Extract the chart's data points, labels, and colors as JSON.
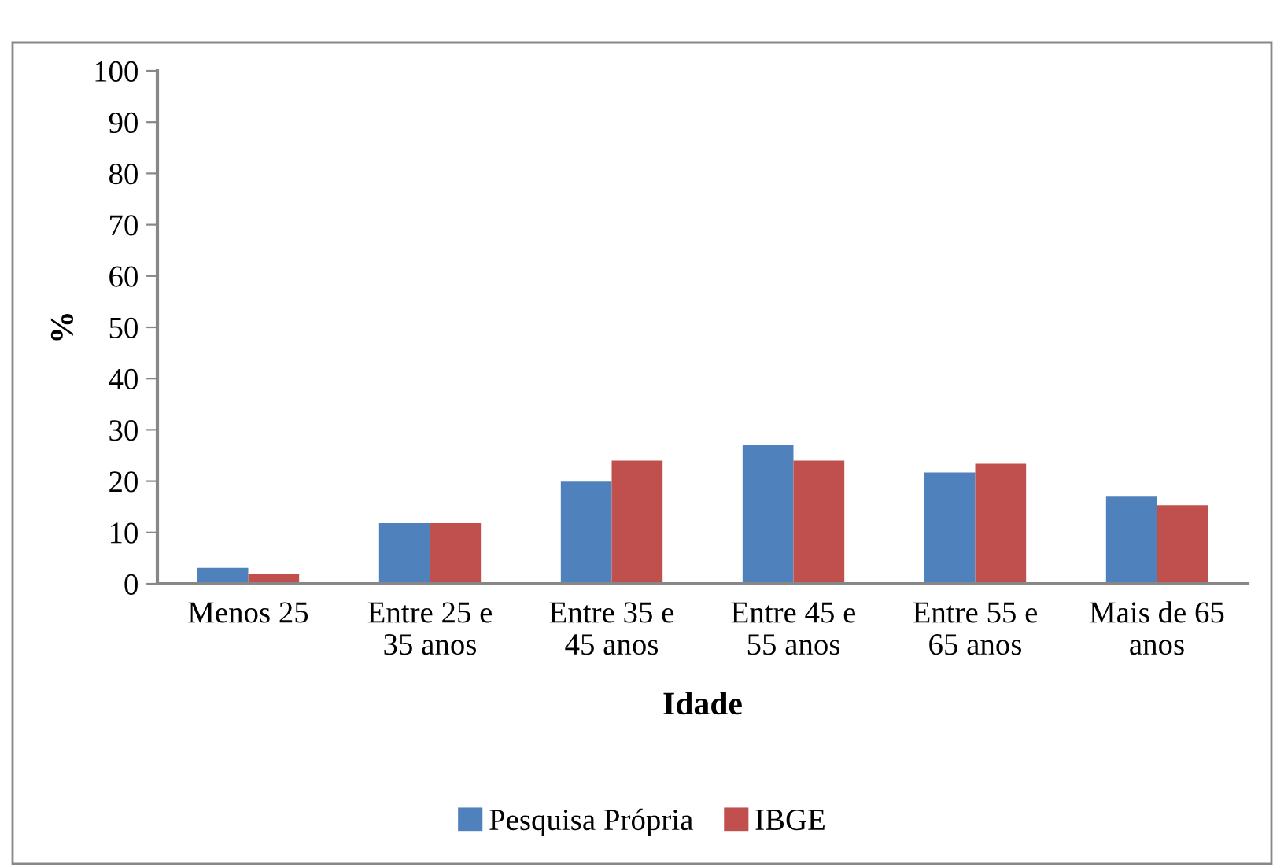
{
  "chart_data": {
    "type": "bar",
    "xlabel": "Idade",
    "ylabel": "%",
    "categories": [
      "Menos 25",
      "Entre 25 e\n35 anos",
      "Entre 35 e\n45 anos",
      "Entre 45 e\n55 anos",
      "Entre 55 e\n65 anos",
      "Mais de 65\nanos"
    ],
    "series": [
      {
        "name": "Pesquisa Própria",
        "color": "#4f81bd",
        "values": [
          3.1,
          11.8,
          19.9,
          27.0,
          21.7,
          17.0
        ]
      },
      {
        "name": "IBGE",
        "color": "#c0504d",
        "values": [
          2.0,
          11.8,
          24.0,
          24.0,
          23.4,
          15.3
        ]
      }
    ],
    "ylim": [
      0,
      100
    ],
    "yticks": [
      0,
      10,
      20,
      30,
      40,
      50,
      60,
      70,
      80,
      90,
      100
    ],
    "grid": false,
    "legend": "bottom"
  }
}
